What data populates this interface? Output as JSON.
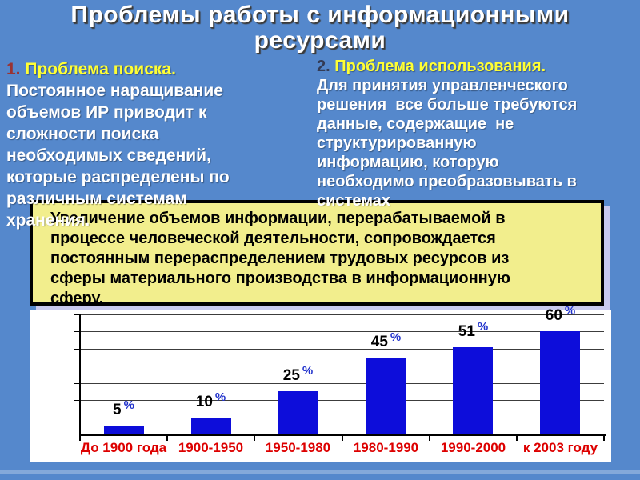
{
  "slide": {
    "title_lines": [
      "Проблемы работы с информационными",
      "ресурсами"
    ]
  },
  "problems": {
    "left": {
      "number": "1.",
      "heading": "Проблема поиска.",
      "lines": [
        "Постоянное наращивание",
        "объемов ИР приводит к",
        "сложности поиска",
        "необходимых сведений,",
        "которые распределены по",
        "различным системам",
        "хранения."
      ]
    },
    "right": {
      "number": "2.",
      "heading": "Проблема использования.",
      "lines": [
        "Для принятия управленческого",
        "решения  все больше требуются",
        "данные, содержащие  не",
        "структурированную",
        "информацию, которую",
        "необходимо преобразовывать в",
        "системах"
      ]
    }
  },
  "callout": {
    "lines": [
      "Увеличение объемов информации, перерабатываемой в",
      "процессе человеческой деятельности, сопровождается",
      "постоянным перераспределением трудовых ресурсов из",
      "сферы материального производства в информационную",
      "сферу."
    ]
  },
  "chart_data": {
    "type": "bar",
    "categories": [
      "До 1900 года",
      "1900-1950",
      "1950-1980",
      "1980-1990",
      "1990-2000",
      "к 2003 году"
    ],
    "values": [
      5,
      10,
      25,
      45,
      51,
      60
    ],
    "value_suffix": "%",
    "title": "",
    "xlabel": "",
    "ylabel": "",
    "ylim": [
      0,
      70
    ],
    "grid_step": 10,
    "grid": true,
    "legend": false
  },
  "colors": {
    "background": "#5588cc",
    "title_text": "#ffffff",
    "heading_yellow": "#ffff33",
    "number_left": "#993333",
    "number_right": "#333b55",
    "body_text": "#ffffff",
    "callout_bg": "#f2ee8d",
    "callout_border": "#000000",
    "callout_shadow": "#c8c9ee",
    "callout_text": "#000000",
    "chart_bg": "#ffffff",
    "bar": "#0d0dda",
    "value_label": "#000000",
    "percent": "#2233cc",
    "category_label": "#dd0000",
    "gridline": "#3c3c3c",
    "axis": "#000000"
  }
}
